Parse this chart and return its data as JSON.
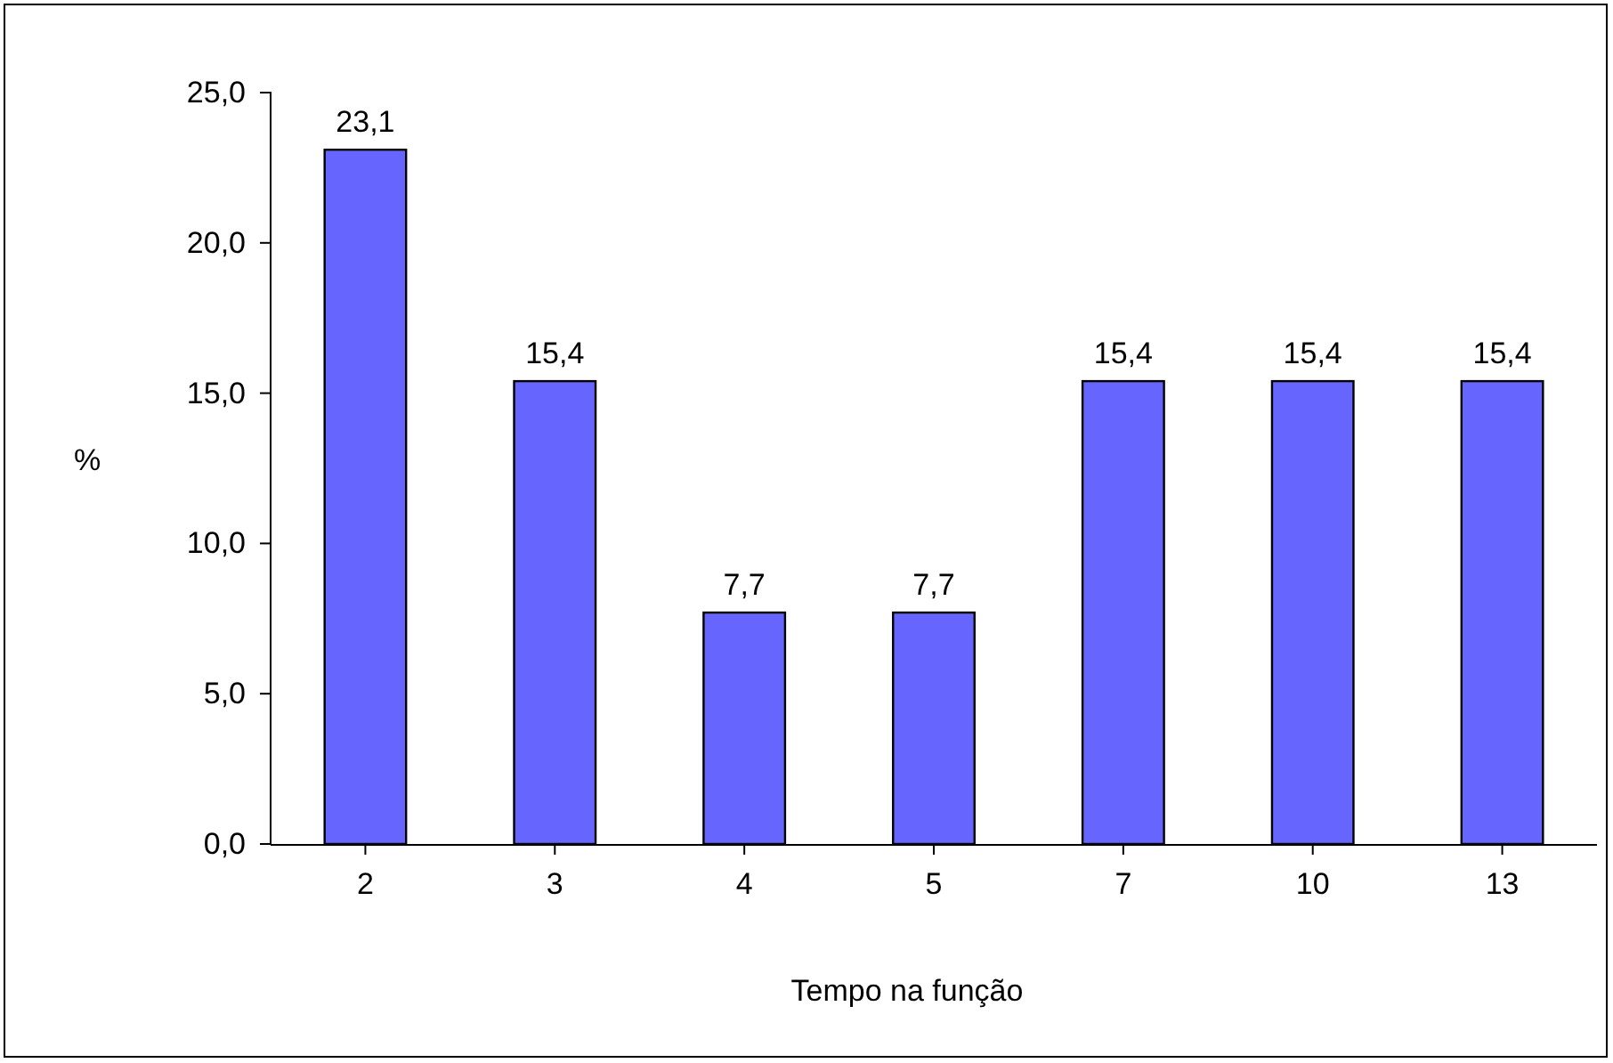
{
  "chart_data": {
    "type": "bar",
    "xlabel": "Tempo na função",
    "ylabel": "%",
    "categories": [
      "2",
      "3",
      "4",
      "5",
      "7",
      "10",
      "13"
    ],
    "values": [
      23.1,
      15.4,
      7.7,
      7.7,
      15.4,
      15.4,
      15.4
    ],
    "value_labels": [
      "23,1",
      "15,4",
      "7,7",
      "7,7",
      "15,4",
      "15,4",
      "15,4"
    ],
    "color": "#6666ff",
    "ylim": [
      0,
      25
    ],
    "yticks": [
      {
        "value": 0,
        "label": "0,0"
      },
      {
        "value": 5,
        "label": "5,0"
      },
      {
        "value": 10,
        "label": "10,0"
      },
      {
        "value": 15,
        "label": "15,0"
      },
      {
        "value": 20,
        "label": "20,0"
      },
      {
        "value": 25,
        "label": "25,0"
      }
    ],
    "grid": false
  }
}
